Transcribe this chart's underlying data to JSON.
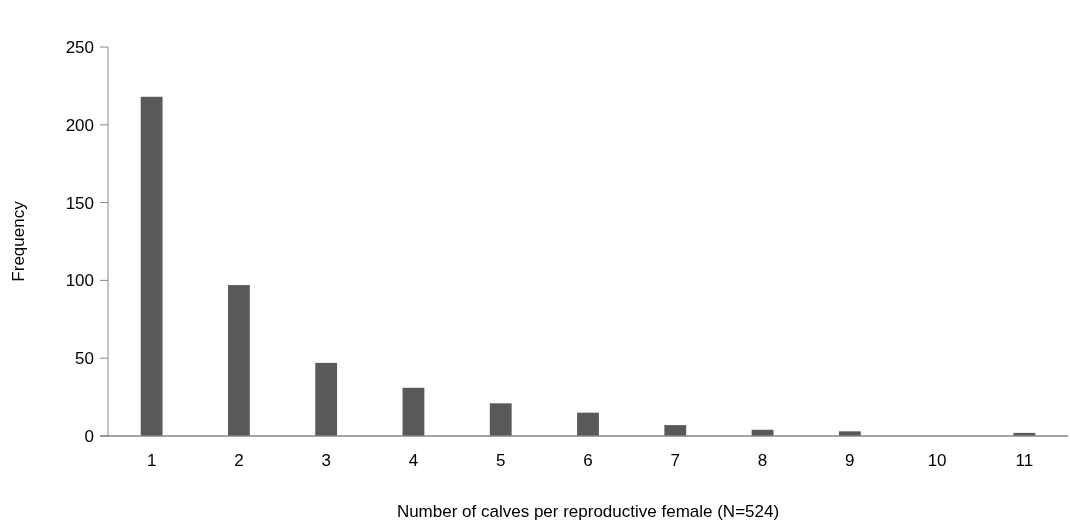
{
  "chart_data": {
    "type": "bar",
    "xlabel": "Number of calves per reproductive female (N=524)",
    "ylabel": "Frequency",
    "categories": [
      "1",
      "2",
      "3",
      "4",
      "5",
      "6",
      "7",
      "8",
      "9",
      "10",
      "11"
    ],
    "values": [
      218,
      97,
      47,
      31,
      21,
      15,
      7,
      4,
      3,
      0,
      2
    ],
    "color": "#595959",
    "ylim": [
      0,
      250
    ],
    "yticks": [
      0,
      50,
      100,
      150,
      200,
      250
    ],
    "grid": false
  }
}
